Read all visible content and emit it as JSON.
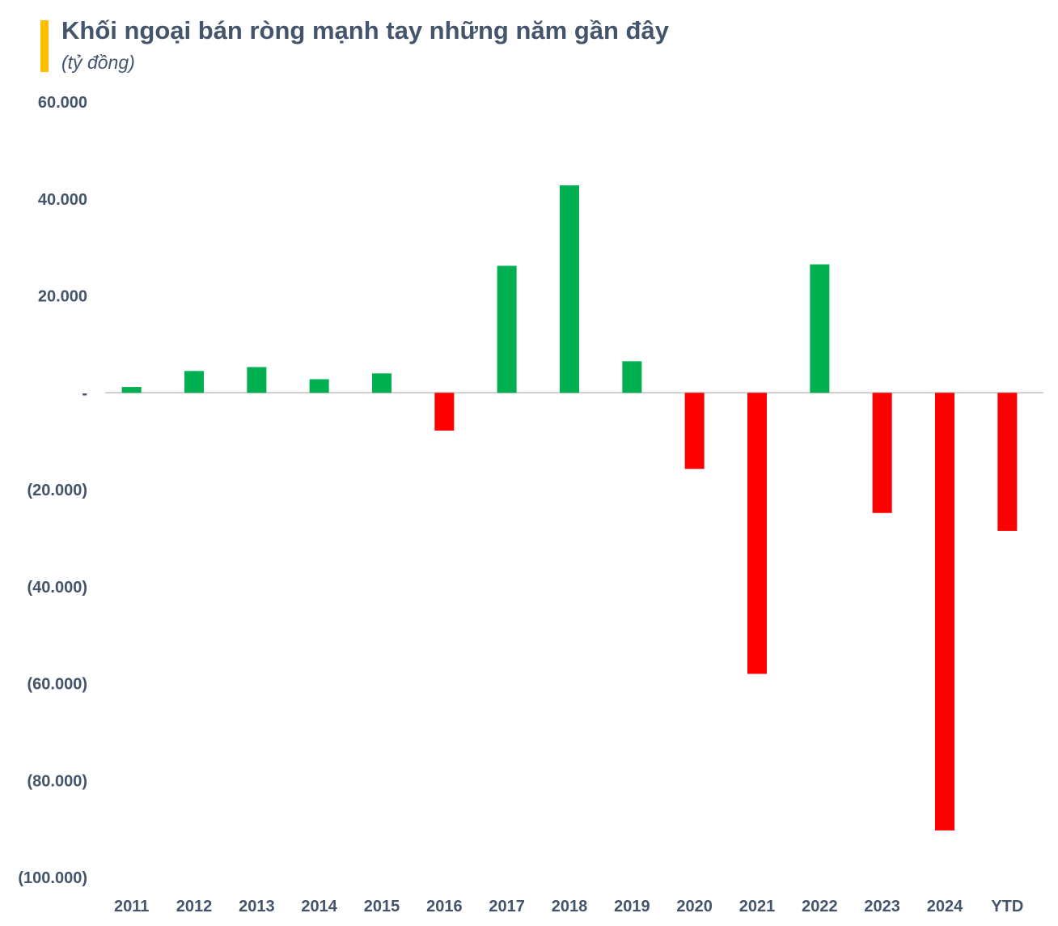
{
  "chart_data": {
    "type": "bar",
    "title": "Khối ngoại bán ròng mạnh tay những năm gần đây",
    "subtitle": "(tỷ đồng)",
    "xlabel": "",
    "ylabel": "",
    "categories": [
      "2011",
      "2012",
      "2013",
      "2014",
      "2015",
      "2016",
      "2017",
      "2018",
      "2019",
      "2020",
      "2021",
      "2022",
      "2023",
      "2024",
      "YTD"
    ],
    "values": [
      1200,
      4500,
      5300,
      2800,
      4000,
      -7800,
      26200,
      42800,
      6500,
      -15700,
      -58000,
      26500,
      -24800,
      -90300,
      -28500
    ],
    "ylim": [
      -100000,
      60000
    ],
    "yticks": [
      60000,
      40000,
      20000,
      0,
      -20000,
      -40000,
      -60000,
      -80000,
      -100000
    ],
    "ytick_labels": [
      "60.000",
      "40.000",
      "20.000",
      "-",
      "(20.000)",
      "(40.000)",
      "(60.000)",
      "(80.000)",
      "(100.000)"
    ],
    "grid": false,
    "legend": "none",
    "colors": {
      "positive": "#00B050",
      "negative": "#FF0000",
      "title": "#44546A",
      "title_accent": "#FFC000",
      "zero_line": "#BFBFBF"
    }
  }
}
